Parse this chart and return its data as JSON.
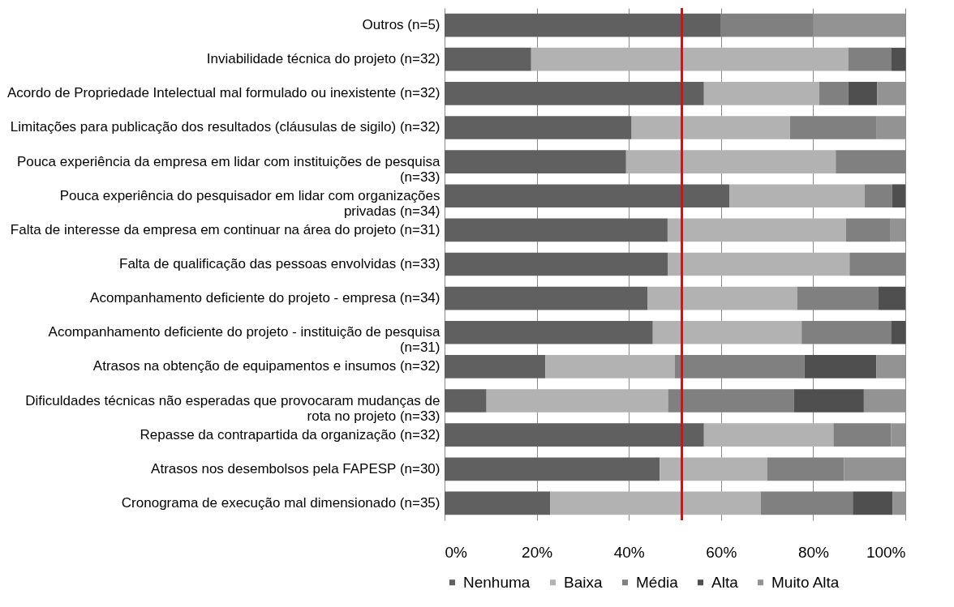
{
  "chart_data": {
    "type": "bar",
    "orientation": "horizontal",
    "stacked": true,
    "categories": [
      "Outros (n=5)",
      "Inviabilidade técnica do projeto (n=32)",
      "Acordo de Propriedade Intelectual mal formulado ou inexistente (n=32)",
      "Limitações para publicação dos resultados (cláusulas de sigilo) (n=32)",
      "Pouca experiência da empresa em lidar com instituições de pesquisa (n=33)",
      "Pouca experiência do pesquisador em lidar com organizações privadas (n=34)",
      "Falta de interesse da empresa em continuar na área do projeto (n=31)",
      "Falta de qualificação das pessoas envolvidas (n=33)",
      "Acompanhamento deficiente do projeto - empresa (n=34)",
      "Acompanhamento deficiente do projeto  - instituição de pesquisa (n=31)",
      "Atrasos na obtenção de equipamentos e insumos (n=32)",
      "Dificuldades técnicas não esperadas que provocaram mudanças de rota no projeto (n=33)",
      "Repasse da contrapartida da organização (n=32)",
      "Atrasos nos desembolsos pela FAPESP (n=30)",
      "Cronograma de execução mal dimensionado (n=35)"
    ],
    "series": [
      {
        "name": "Nenhuma",
        "color": "#606060",
        "values": [
          60,
          18.8,
          56.3,
          40.6,
          39.4,
          61.8,
          48.4,
          48.5,
          44.1,
          45.2,
          21.9,
          9.1,
          56.3,
          46.7,
          22.9
        ]
      },
      {
        "name": "Baixa",
        "color": "#b2b2b2",
        "values": [
          0,
          68.8,
          25,
          34.4,
          45.5,
          29.4,
          38.7,
          39.4,
          32.4,
          32.3,
          28.1,
          39.4,
          28.1,
          23.3,
          45.7
        ]
      },
      {
        "name": "Média",
        "color": "#808080",
        "values": [
          20,
          9.4,
          6.3,
          18.8,
          15.2,
          5.9,
          9.7,
          12.1,
          17.6,
          19.4,
          28.1,
          27.3,
          12.5,
          16.7,
          20
        ]
      },
      {
        "name": "Alta",
        "color": "#4f4f4f",
        "values": [
          0,
          3.1,
          6.3,
          0,
          0,
          2.9,
          0,
          0,
          5.9,
          3.2,
          15.6,
          15.2,
          0,
          0,
          8.6
        ]
      },
      {
        "name": "Muito Alta",
        "color": "#939393",
        "values": [
          20,
          0,
          6.3,
          6.3,
          0,
          0,
          3.2,
          0,
          0,
          0,
          6.3,
          9.1,
          3.1,
          13.3,
          2.9
        ]
      }
    ],
    "xlim": [
      0,
      100
    ],
    "xticks": [
      {
        "value": 0,
        "label": "0%"
      },
      {
        "value": 20,
        "label": "20%"
      },
      {
        "value": 40,
        "label": "40%"
      },
      {
        "value": 60,
        "label": "60%"
      },
      {
        "value": 80,
        "label": "80%"
      },
      {
        "value": 100,
        "label": "100%"
      }
    ],
    "ref_lines": [
      {
        "axis": "x",
        "value": 51.5,
        "color": "#ff0000"
      }
    ],
    "grid": "x",
    "legend": "bottom"
  }
}
